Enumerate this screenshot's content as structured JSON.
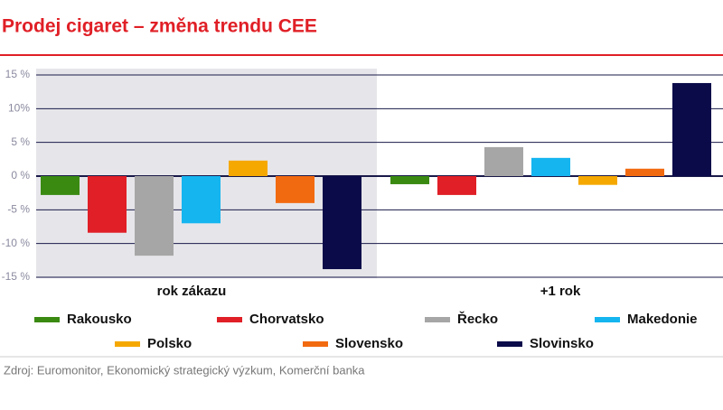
{
  "chart_data": {
    "type": "bar",
    "title": "Prodej cigaret – změna trendu CEE",
    "categories": [
      "rok zákazu",
      "+1 rok"
    ],
    "series": [
      {
        "name": "Rakousko",
        "color": "#3a8a12",
        "values": [
          -2.8,
          -1.2
        ]
      },
      {
        "name": "Chorvatsko",
        "color": "#e01f26",
        "values": [
          -8.4,
          -2.8
        ]
      },
      {
        "name": "Řecko",
        "color": "#a6a6a6",
        "values": [
          -11.8,
          4.3
        ]
      },
      {
        "name": "Makedonie",
        "color": "#15b5f0",
        "values": [
          -7.0,
          2.7
        ]
      },
      {
        "name": "Polsko",
        "color": "#f5a800",
        "values": [
          2.3,
          -1.3
        ]
      },
      {
        "name": "Slovensko",
        "color": "#f26a10",
        "values": [
          -4.0,
          1.1
        ]
      },
      {
        "name": "Slovinsko",
        "color": "#0b0b4a",
        "values": [
          -13.8,
          13.8
        ]
      }
    ],
    "ylim": [
      -15,
      15
    ],
    "yticks": [
      {
        "value": 15,
        "label": "15 %"
      },
      {
        "value": 10,
        "label": "10%"
      },
      {
        "value": 5,
        "label": "5 %"
      },
      {
        "value": 0,
        "label": "0 %"
      },
      {
        "value": -5,
        "label": "-5 %"
      },
      {
        "value": -10,
        "label": "-10 %"
      },
      {
        "value": -15,
        "label": "-15 %"
      }
    ],
    "grid": true,
    "source": "Zdroj: Euromonitor, Ekonomický strategický výzkum, Komerční banka"
  }
}
